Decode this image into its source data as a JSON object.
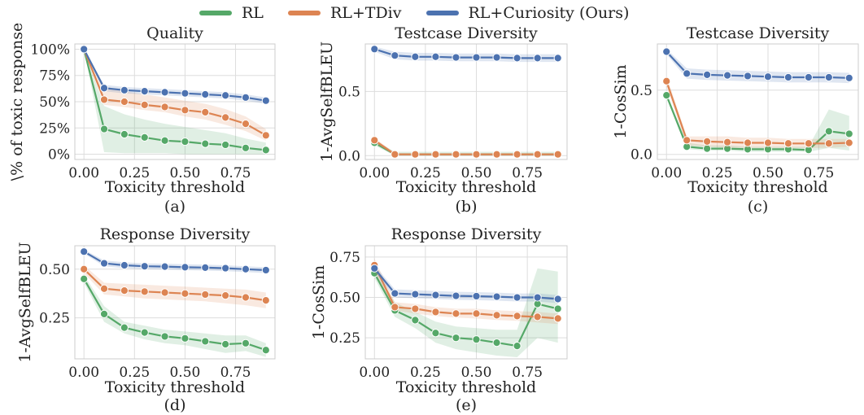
{
  "legend": [
    {
      "name": "RL",
      "color": "#55a868"
    },
    {
      "name": "RL+TDiv",
      "color": "#dd8452"
    },
    {
      "name": "RL+Curiosity (Ours)",
      "color": "#4c72b0"
    }
  ],
  "chart_data": [
    {
      "type": "line",
      "panel": "(a)",
      "title": "Quality",
      "xlabel": "Toxicity threshold",
      "ylabel": "\\% of toxic response",
      "x": [
        0.0,
        0.1,
        0.2,
        0.3,
        0.4,
        0.5,
        0.6,
        0.7,
        0.8,
        0.9
      ],
      "xlim": [
        -0.045,
        0.945
      ],
      "xticks": [
        0.0,
        0.25,
        0.5,
        0.75
      ],
      "xtick_labels": [
        "0.00",
        "0.25",
        "0.50",
        "0.75"
      ],
      "ylim": [
        -0.05,
        1.05
      ],
      "yticks": [
        0,
        0.25,
        0.5,
        0.75,
        1.0
      ],
      "ytick_labels": [
        "0%",
        "25%",
        "50%",
        "75%",
        "100%"
      ],
      "grid": true,
      "series": [
        {
          "name": "RL",
          "color": "#55a868",
          "values": [
            1.0,
            0.24,
            0.19,
            0.16,
            0.13,
            0.12,
            0.1,
            0.09,
            0.06,
            0.04
          ],
          "band_low": [
            1.0,
            0.02,
            0.01,
            0.01,
            0.01,
            0.0,
            0.0,
            0.0,
            0.0,
            0.0
          ],
          "band_high": [
            1.0,
            0.46,
            0.38,
            0.33,
            0.29,
            0.26,
            0.23,
            0.2,
            0.15,
            0.11
          ]
        },
        {
          "name": "RL+TDiv",
          "color": "#dd8452",
          "values": [
            1.0,
            0.52,
            0.5,
            0.47,
            0.45,
            0.42,
            0.4,
            0.35,
            0.29,
            0.18
          ],
          "band_low": [
            1.0,
            0.47,
            0.45,
            0.42,
            0.4,
            0.36,
            0.33,
            0.28,
            0.22,
            0.13
          ],
          "band_high": [
            1.0,
            0.65,
            0.6,
            0.57,
            0.54,
            0.51,
            0.48,
            0.43,
            0.36,
            0.24
          ]
        },
        {
          "name": "RL+Curiosity (Ours)",
          "color": "#4c72b0",
          "values": [
            1.0,
            0.63,
            0.61,
            0.6,
            0.59,
            0.58,
            0.57,
            0.56,
            0.54,
            0.51
          ],
          "band_low": [
            1.0,
            0.6,
            0.58,
            0.57,
            0.56,
            0.55,
            0.54,
            0.53,
            0.51,
            0.48
          ],
          "band_high": [
            1.0,
            0.66,
            0.64,
            0.63,
            0.62,
            0.61,
            0.6,
            0.59,
            0.57,
            0.54
          ]
        }
      ]
    },
    {
      "type": "line",
      "panel": "(b)",
      "title": "Testcase Diversity",
      "xlabel": "Toxicity threshold",
      "ylabel": "1-AvgSelfBLEU",
      "x": [
        0.0,
        0.1,
        0.2,
        0.3,
        0.4,
        0.5,
        0.6,
        0.7,
        0.8,
        0.9
      ],
      "xlim": [
        -0.045,
        0.945
      ],
      "xticks": [
        0.0,
        0.25,
        0.5,
        0.75
      ],
      "xtick_labels": [
        "0.00",
        "0.25",
        "0.50",
        "0.75"
      ],
      "ylim": [
        -0.03,
        0.87
      ],
      "yticks": [
        0,
        0.5
      ],
      "ytick_labels": [
        "0.0",
        "0.5"
      ],
      "grid": true,
      "series": [
        {
          "name": "RL",
          "color": "#55a868",
          "values": [
            0.1,
            0.01,
            0.01,
            0.01,
            0.01,
            0.01,
            0.01,
            0.01,
            0.01,
            0.01
          ],
          "band_low": [
            0.08,
            0.0,
            0.0,
            0.0,
            0.0,
            0.0,
            0.0,
            0.0,
            0.0,
            0.0
          ],
          "band_high": [
            0.12,
            0.03,
            0.03,
            0.03,
            0.03,
            0.03,
            0.03,
            0.03,
            0.03,
            0.03
          ]
        },
        {
          "name": "RL+TDiv",
          "color": "#dd8452",
          "values": [
            0.12,
            0.01,
            0.01,
            0.01,
            0.01,
            0.01,
            0.01,
            0.01,
            0.01,
            0.01
          ],
          "band_low": [
            0.1,
            0.0,
            0.0,
            0.0,
            0.0,
            0.0,
            0.0,
            0.0,
            0.0,
            0.0
          ],
          "band_high": [
            0.14,
            0.02,
            0.02,
            0.02,
            0.02,
            0.02,
            0.02,
            0.02,
            0.02,
            0.02
          ]
        },
        {
          "name": "RL+Curiosity (Ours)",
          "color": "#4c72b0",
          "values": [
            0.83,
            0.78,
            0.77,
            0.77,
            0.765,
            0.765,
            0.765,
            0.76,
            0.76,
            0.76
          ],
          "band_low": [
            0.81,
            0.75,
            0.74,
            0.74,
            0.735,
            0.735,
            0.735,
            0.73,
            0.73,
            0.73
          ],
          "band_high": [
            0.85,
            0.81,
            0.8,
            0.8,
            0.795,
            0.795,
            0.795,
            0.79,
            0.79,
            0.79
          ]
        }
      ]
    },
    {
      "type": "line",
      "panel": "(c)",
      "title": "Testcase Diversity",
      "xlabel": "Toxicity threshold",
      "ylabel": "1-CosSim",
      "x": [
        0.0,
        0.1,
        0.2,
        0.3,
        0.4,
        0.5,
        0.6,
        0.7,
        0.8,
        0.9
      ],
      "xlim": [
        -0.045,
        0.945
      ],
      "xticks": [
        0.0,
        0.25,
        0.5,
        0.75
      ],
      "xtick_labels": [
        "0.00",
        "0.25",
        "0.50",
        "0.75"
      ],
      "ylim": [
        -0.04,
        0.86
      ],
      "yticks": [
        0,
        0.5
      ],
      "ytick_labels": [
        "0.0",
        "0.5"
      ],
      "grid": true,
      "series": [
        {
          "name": "RL",
          "color": "#55a868",
          "values": [
            0.46,
            0.06,
            0.045,
            0.045,
            0.04,
            0.04,
            0.04,
            0.035,
            0.18,
            0.16
          ],
          "band_low": [
            0.44,
            0.04,
            0.03,
            0.03,
            0.02,
            0.02,
            0.02,
            0.02,
            0.05,
            0.03
          ],
          "band_high": [
            0.48,
            0.09,
            0.07,
            0.07,
            0.06,
            0.06,
            0.06,
            0.06,
            0.35,
            0.3
          ]
        },
        {
          "name": "RL+TDiv",
          "color": "#dd8452",
          "values": [
            0.57,
            0.11,
            0.1,
            0.095,
            0.09,
            0.09,
            0.085,
            0.085,
            0.085,
            0.09
          ],
          "band_low": [
            0.53,
            0.07,
            0.06,
            0.05,
            0.05,
            0.05,
            0.05,
            0.05,
            0.05,
            0.06
          ],
          "band_high": [
            0.61,
            0.14,
            0.14,
            0.14,
            0.13,
            0.13,
            0.12,
            0.12,
            0.12,
            0.12
          ]
        },
        {
          "name": "RL+Curiosity (Ours)",
          "color": "#4c72b0",
          "values": [
            0.8,
            0.63,
            0.62,
            0.615,
            0.61,
            0.605,
            0.6,
            0.6,
            0.6,
            0.595
          ],
          "band_low": [
            0.78,
            0.59,
            0.58,
            0.575,
            0.57,
            0.565,
            0.56,
            0.56,
            0.56,
            0.555
          ],
          "band_high": [
            0.82,
            0.67,
            0.66,
            0.655,
            0.65,
            0.645,
            0.64,
            0.64,
            0.64,
            0.635
          ]
        }
      ]
    },
    {
      "type": "line",
      "panel": "(d)",
      "title": "Response Diversity",
      "xlabel": "Toxicity threshold",
      "ylabel": "1-AvgSelfBLEU",
      "x": [
        0.0,
        0.1,
        0.2,
        0.3,
        0.4,
        0.5,
        0.6,
        0.7,
        0.8,
        0.9
      ],
      "xlim": [
        -0.045,
        0.945
      ],
      "xticks": [
        0.0,
        0.25,
        0.5,
        0.75
      ],
      "xtick_labels": [
        "0.00",
        "0.25",
        "0.50",
        "0.75"
      ],
      "ylim": [
        0.04,
        0.62
      ],
      "yticks": [
        0.25,
        0.5
      ],
      "ytick_labels": [
        "0.25",
        "0.50"
      ],
      "grid": true,
      "series": [
        {
          "name": "RL",
          "color": "#55a868",
          "values": [
            0.45,
            0.27,
            0.2,
            0.175,
            0.155,
            0.145,
            0.13,
            0.115,
            0.12,
            0.085
          ],
          "band_low": [
            0.43,
            0.23,
            0.17,
            0.14,
            0.12,
            0.11,
            0.09,
            0.07,
            0.08,
            0.05
          ],
          "band_high": [
            0.47,
            0.31,
            0.23,
            0.21,
            0.19,
            0.18,
            0.17,
            0.16,
            0.16,
            0.12
          ]
        },
        {
          "name": "RL+TDiv",
          "color": "#dd8452",
          "values": [
            0.5,
            0.4,
            0.39,
            0.385,
            0.38,
            0.375,
            0.37,
            0.365,
            0.355,
            0.34
          ],
          "band_low": [
            0.48,
            0.37,
            0.36,
            0.35,
            0.345,
            0.34,
            0.335,
            0.325,
            0.315,
            0.3
          ],
          "band_high": [
            0.52,
            0.43,
            0.425,
            0.42,
            0.415,
            0.41,
            0.405,
            0.4,
            0.395,
            0.38
          ]
        },
        {
          "name": "RL+Curiosity (Ours)",
          "color": "#4c72b0",
          "values": [
            0.59,
            0.53,
            0.52,
            0.515,
            0.513,
            0.51,
            0.508,
            0.505,
            0.5,
            0.495
          ],
          "band_low": [
            0.58,
            0.515,
            0.505,
            0.5,
            0.498,
            0.495,
            0.493,
            0.49,
            0.485,
            0.48
          ],
          "band_high": [
            0.6,
            0.545,
            0.535,
            0.53,
            0.528,
            0.525,
            0.523,
            0.52,
            0.515,
            0.51
          ]
        }
      ]
    },
    {
      "type": "line",
      "panel": "(e)",
      "title": "Response Diversity",
      "xlabel": "Toxicity threshold",
      "ylabel": "1-CosSim",
      "x": [
        0.0,
        0.1,
        0.2,
        0.3,
        0.4,
        0.5,
        0.6,
        0.7,
        0.8,
        0.9
      ],
      "xlim": [
        -0.045,
        0.945
      ],
      "xticks": [
        0.0,
        0.25,
        0.5,
        0.75
      ],
      "xtick_labels": [
        "0.00",
        "0.25",
        "0.50",
        "0.75"
      ],
      "ylim": [
        0.12,
        0.82
      ],
      "yticks": [
        0.25,
        0.5,
        0.75
      ],
      "ytick_labels": [
        "0.25",
        "0.50",
        "0.75"
      ],
      "grid": true,
      "series": [
        {
          "name": "RL",
          "color": "#55a868",
          "values": [
            0.65,
            0.42,
            0.36,
            0.28,
            0.25,
            0.24,
            0.22,
            0.2,
            0.46,
            0.43
          ],
          "band_low": [
            0.62,
            0.38,
            0.31,
            0.22,
            0.18,
            0.16,
            0.14,
            0.13,
            0.25,
            0.22
          ],
          "band_high": [
            0.68,
            0.47,
            0.41,
            0.35,
            0.32,
            0.31,
            0.3,
            0.3,
            0.68,
            0.66
          ]
        },
        {
          "name": "RL+TDiv",
          "color": "#dd8452",
          "values": [
            0.7,
            0.44,
            0.43,
            0.41,
            0.4,
            0.4,
            0.39,
            0.385,
            0.38,
            0.37
          ],
          "band_low": [
            0.66,
            0.42,
            0.4,
            0.385,
            0.375,
            0.37,
            0.36,
            0.355,
            0.345,
            0.335
          ],
          "band_high": [
            0.74,
            0.47,
            0.46,
            0.44,
            0.43,
            0.43,
            0.42,
            0.415,
            0.41,
            0.4
          ]
        },
        {
          "name": "RL+Curiosity (Ours)",
          "color": "#4c72b0",
          "values": [
            0.68,
            0.525,
            0.52,
            0.515,
            0.51,
            0.508,
            0.505,
            0.5,
            0.5,
            0.49
          ],
          "band_low": [
            0.66,
            0.5,
            0.495,
            0.49,
            0.485,
            0.483,
            0.48,
            0.475,
            0.475,
            0.465
          ],
          "band_high": [
            0.7,
            0.55,
            0.545,
            0.54,
            0.535,
            0.533,
            0.53,
            0.525,
            0.525,
            0.515
          ]
        }
      ]
    }
  ]
}
